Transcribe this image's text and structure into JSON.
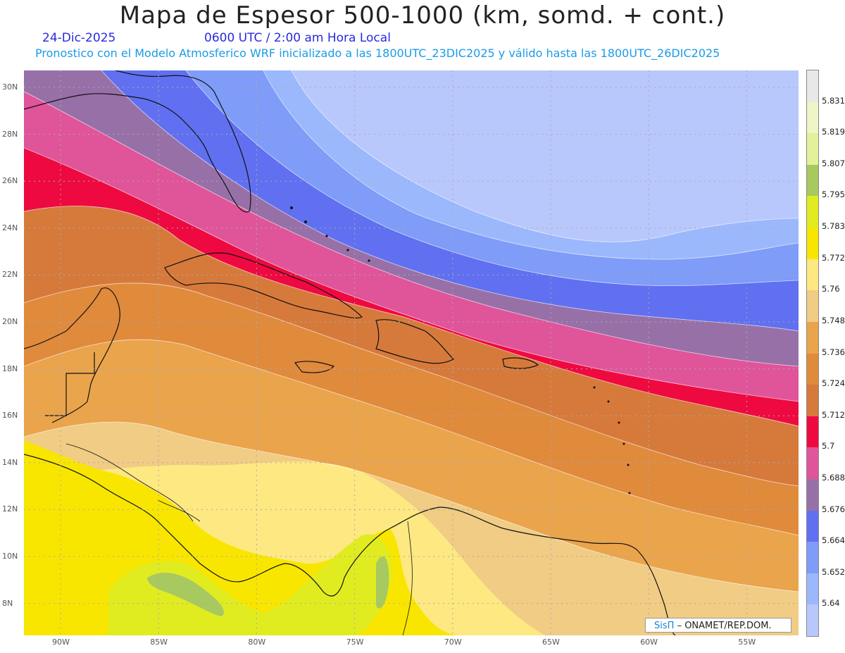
{
  "header": {
    "title": "Mapa de Espesor 500-1000 (km, somd. + cont.)",
    "date": "24-Dic-2025",
    "time": "0600 UTC / 2:00 am Hora Local",
    "subtitle": "Pronostico con el Modelo Atmosferico WRF inicializado a las 1800UTC_23DIC2025 y válido hasta las  1800UTC_26DIC2025"
  },
  "axes": {
    "lat_labels": [
      "30N",
      "28N",
      "26N",
      "24N",
      "22N",
      "20N",
      "18N",
      "16N",
      "14N",
      "12N",
      "10N",
      "8N"
    ],
    "lon_labels": [
      "90W",
      "85W",
      "80W",
      "75W",
      "70W",
      "65W",
      "60W",
      "55W"
    ]
  },
  "colorbar": {
    "labels": [
      "5.831",
      "5.819",
      "5.807",
      "5.795",
      "5.783",
      "5.772",
      "5.76",
      "5.748",
      "5.736",
      "5.724",
      "5.712",
      "5.7",
      "5.688",
      "5.676",
      "5.664",
      "5.652",
      "5.64"
    ],
    "colors": [
      "#e8e8e8",
      "#f0f5c8",
      "#e2f29a",
      "#a8c860",
      "#e0ec20",
      "#f8e600",
      "#fee882",
      "#f0cc84",
      "#eaa44c",
      "#e08a3c",
      "#d67a3c",
      "#ee0a40",
      "#e0549a",
      "#9870a8",
      "#6070f0",
      "#7e9cf8",
      "#9cb8fc",
      "#b8c8fc"
    ]
  },
  "credit": {
    "brand": "SisΠ",
    "text": "– ONAMET/REP.DOM."
  }
}
